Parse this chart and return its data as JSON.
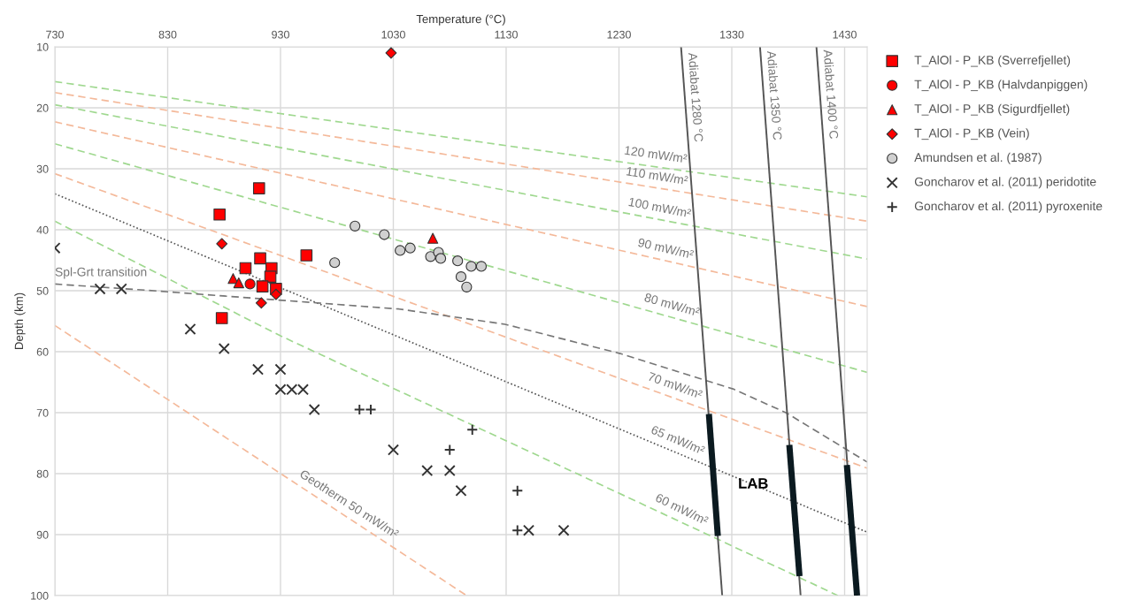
{
  "chart_data": {
    "type": "scatter",
    "xlabel": "Temperature (°C)",
    "ylabel": "Depth (km)",
    "xlim": [
      730,
      1450
    ],
    "xticks": [
      730,
      830,
      930,
      1030,
      1130,
      1230,
      1330,
      1430
    ],
    "ylim": [
      100,
      10
    ],
    "yticks": [
      10,
      20,
      30,
      40,
      50,
      60,
      70,
      80,
      90,
      100
    ],
    "grid": true,
    "legend": "top right",
    "series": [
      {
        "name": "T_AlOl - P_KB (Sverrefjellet)",
        "marker": "square",
        "color": "#ff0000",
        "x": [
          911,
          876,
          953,
          912,
          899,
          922,
          921,
          914,
          926,
          878
        ],
        "values": [
          33.2,
          37.5,
          44.2,
          44.7,
          46.3,
          46.3,
          47.7,
          49.3,
          49.7,
          54.5
        ]
      },
      {
        "name": "T_AlOl - P_KB (Halvdanpiggen)",
        "marker": "circle",
        "color": "#ff0000",
        "x": [
          903
        ],
        "values": [
          48.9
        ]
      },
      {
        "name": "T_AlOl - P_KB (Sigurdfjellet)",
        "marker": "triangle",
        "color": "#ff0000",
        "x": [
          888,
          893,
          1065
        ],
        "values": [
          48.0,
          48.7,
          41.4
        ]
      },
      {
        "name": "T_AlOl - P_KB (Vein)",
        "marker": "diamond",
        "color": "#ff0000",
        "x": [
          1028,
          878,
          913,
          926
        ],
        "values": [
          11.0,
          42.3,
          52.0,
          50.6
        ]
      },
      {
        "name": "Amundsen et al. (1987)",
        "marker": "circle",
        "color": "#d0d0d0",
        "x": [
          996,
          1022,
          978,
          1036,
          1045,
          1063,
          1070,
          1072,
          1087,
          1099,
          1108,
          1090,
          1095
        ],
        "values": [
          39.4,
          40.8,
          45.4,
          43.4,
          43.0,
          44.4,
          43.7,
          44.7,
          45.1,
          46.0,
          46.0,
          47.7,
          49.4
        ]
      },
      {
        "name": "Goncharov et al. (2011) peridotite",
        "marker": "x",
        "color": "#333333",
        "x": [
          730,
          770,
          789,
          850,
          880,
          910,
          930,
          930,
          940,
          950,
          960,
          1030,
          1060,
          1080,
          1090,
          1150,
          1181
        ],
        "values": [
          43.0,
          49.7,
          49.7,
          56.3,
          59.5,
          62.9,
          62.9,
          66.2,
          66.2,
          66.2,
          69.5,
          76.1,
          79.5,
          79.5,
          82.8,
          89.3,
          89.3
        ]
      },
      {
        "name": "Goncharov et al. (2011) pyroxenite",
        "marker": "cross",
        "color": "#333333",
        "x": [
          1000,
          1010,
          1100,
          1080,
          1140,
          1140
        ],
        "values": [
          69.5,
          69.5,
          72.8,
          76.1,
          82.8,
          89.3
        ]
      },
      {
        "type": "line",
        "line_style": "dashed",
        "color": "#9fd88f",
        "x": [
          730,
          1450
        ],
        "values": [
          15.7,
          34.6
        ]
      },
      {
        "type": "line",
        "line_style": "dashed",
        "color": "#f4b99a",
        "x": [
          730,
          1450
        ],
        "values": [
          17.5,
          38.6
        ]
      },
      {
        "type": "line",
        "line_style": "dashed",
        "color": "#9fd88f",
        "x": [
          730,
          1450
        ],
        "values": [
          19.5,
          44.8
        ]
      },
      {
        "type": "line",
        "line_style": "dashed",
        "color": "#f4b99a",
        "x": [
          730,
          1450
        ],
        "values": [
          22.3,
          52.6
        ]
      },
      {
        "type": "line",
        "line_style": "dashed",
        "color": "#9fd88f",
        "x": [
          730,
          1450
        ],
        "values": [
          25.9,
          63.4
        ]
      },
      {
        "type": "line",
        "line_style": "dashed",
        "color": "#f4b99a",
        "x": [
          730,
          1450
        ],
        "values": [
          30.8,
          79.1
        ]
      },
      {
        "type": "line",
        "line_style": "dotted",
        "color": "#555555",
        "x": [
          730,
          1450
        ],
        "values": [
          34.1,
          89.6
        ]
      },
      {
        "type": "line",
        "line_style": "dashed",
        "color": "#9fd88f",
        "x": [
          730,
          930,
          1310,
          1424
        ],
        "values": [
          38.6,
          57.4,
          90.1,
          100
        ]
      },
      {
        "type": "line",
        "line_style": "dashed",
        "color": "#f4b99a",
        "x": [
          730,
          1095
        ],
        "values": [
          55.7,
          100
        ]
      },
      {
        "type": "line",
        "line_style": "dashed",
        "color": "#777777",
        "x": [
          730,
          810,
          1035,
          1129,
          1231,
          1331,
          1378,
          1450
        ],
        "values": [
          48.9,
          49.9,
          53.0,
          55.5,
          60.3,
          66.1,
          70.0,
          78.1
        ]
      },
      {
        "type": "line",
        "line_style": "solid",
        "color": "#555555",
        "x": [
          1285,
          1321.5
        ],
        "values": [
          10,
          100
        ]
      },
      {
        "type": "line",
        "line_style": "solid",
        "color": "#555555",
        "x": [
          1355,
          1391
        ],
        "values": [
          10,
          100
        ]
      },
      {
        "type": "line",
        "line_style": "solid",
        "color": "#555555",
        "x": [
          1405,
          1441
        ],
        "values": [
          10,
          100
        ]
      },
      {
        "type": "line",
        "line_style": "solid",
        "color": "#0b1a20",
        "x": [
          1309.7,
          1317.6
        ],
        "values": [
          70.2,
          90.2
        ]
      },
      {
        "type": "line",
        "line_style": "solid",
        "color": "#0b1a20",
        "x": [
          1381,
          1390
        ],
        "values": [
          75.3,
          96.8
        ]
      },
      {
        "type": "line",
        "line_style": "solid",
        "color": "#0b1a20",
        "x": [
          1432,
          1441
        ],
        "values": [
          78.6,
          100
        ]
      }
    ],
    "annotations": [
      {
        "text": "Spl-Grt transition",
        "x": 730,
        "y": 48.9
      },
      {
        "text": "120 mW/m²",
        "x": 1261,
        "y": 29.6
      },
      {
        "text": "110 mW/m²",
        "x": 1262,
        "y": 33.1
      },
      {
        "text": "100 mW/m²",
        "x": 1264,
        "y": 38.3
      },
      {
        "text": "90 mW/m²",
        "x": 1269,
        "y": 45.0
      },
      {
        "text": "80 mW/m²",
        "x": 1274,
        "y": 54.2
      },
      {
        "text": "70 mW/m²",
        "x": 1276,
        "y": 67.4
      },
      {
        "text": "65 mW/m²",
        "x": 1278,
        "y": 76.3
      },
      {
        "text": "60 mW/m²",
        "x": 1281,
        "y": 87.6
      },
      {
        "text": "Geotherm 50 mW/m²",
        "x": 985,
        "y": 86.6
      },
      {
        "text": "Adiabat 1280 °C",
        "x": 1288.4,
        "y": 18.3
      },
      {
        "text": "Adiabat 1350 °C",
        "x": 1358.2,
        "y": 18.0
      },
      {
        "text": "Adiabat 1400 °C",
        "x": 1408.2,
        "y": 17.8
      },
      {
        "text": "LAB",
        "x": 1349,
        "y": 81.8
      }
    ]
  }
}
